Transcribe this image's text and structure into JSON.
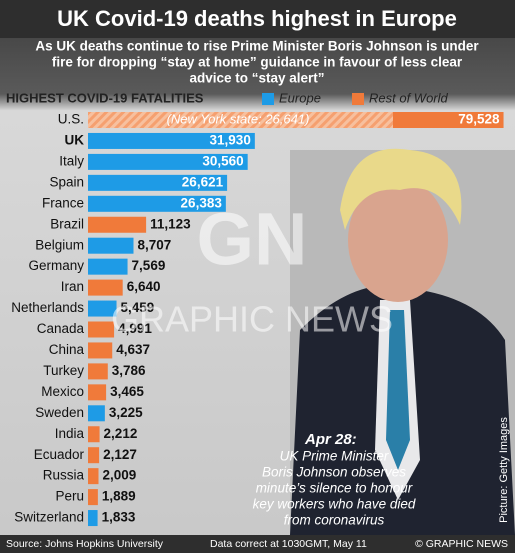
{
  "chart_data": {
    "type": "bar",
    "title": "UK Covid-19 deaths highest in Europe",
    "subtitle": [
      "As UK deaths continue to rise Prime Minister Boris Johnson is under",
      "fire for dropping “stay at home” guidance in favour of less clear",
      "advice to “stay alert”"
    ],
    "chart_title": "HIGHEST COVID-19 FATALITIES",
    "categories": [
      "U.S.",
      "UK",
      "Italy",
      "Spain",
      "France",
      "Brazil",
      "Belgium",
      "Germany",
      "Iran",
      "Netherlands",
      "Canada",
      "China",
      "Turkey",
      "Mexico",
      "Sweden",
      "India",
      "Ecuador",
      "Russia",
      "Peru",
      "Switzerland"
    ],
    "series": [
      {
        "name": "Europe",
        "color": "#1e9be6",
        "values": [
          null,
          31930,
          30560,
          26621,
          26383,
          null,
          8707,
          7569,
          null,
          5459,
          null,
          null,
          null,
          null,
          3225,
          null,
          null,
          null,
          null,
          1833
        ],
        "value_labels": [
          null,
          "31,930",
          "30,560",
          "26,621",
          "26,383",
          null,
          "8,707",
          "7,569",
          null,
          "5,459",
          null,
          null,
          null,
          null,
          "3,225",
          null,
          null,
          null,
          null,
          "1,833"
        ]
      },
      {
        "name": "Rest of World",
        "color": "#f07a3a",
        "values": [
          79528,
          null,
          null,
          null,
          null,
          11123,
          null,
          null,
          6640,
          null,
          4991,
          4637,
          3786,
          3465,
          null,
          2212,
          2127,
          2009,
          1889,
          null
        ],
        "value_labels": [
          "79,528",
          null,
          null,
          null,
          null,
          "11,123",
          null,
          null,
          "6,640",
          null,
          "4,991",
          "4,637",
          "3,786",
          "3,465",
          null,
          "2,212",
          "2,127",
          "2,009",
          "1,889",
          null
        ]
      }
    ],
    "xlim": [
      0,
      80000
    ],
    "annotation": "(New York state: 26,641)",
    "watermark": [
      "GN",
      "GRAPHIC NEWS"
    ],
    "caption_date": "Apr 28:",
    "caption": [
      "UK Prime Minister",
      "Boris Johnson observes",
      "minute’s silence to honour",
      "key workers who have died",
      "from coronavirus"
    ],
    "credit": "Picture: Getty Images",
    "source": "Source: Johns Hopkins University",
    "note": "Data correct at 1030GMT, May 11",
    "copyright": "© GRAPHIC NEWS"
  }
}
